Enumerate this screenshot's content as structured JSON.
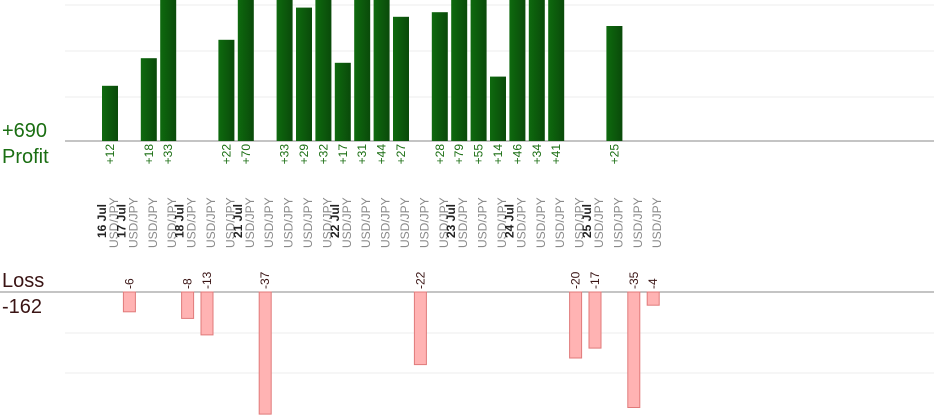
{
  "profit_label": "Profit",
  "loss_label": "Loss",
  "profit_total": "+690",
  "loss_total": "-162",
  "colors": {
    "profit_bar": "#0e6a0e",
    "profit_bar_dark": "#0a4a0a",
    "profit_text": "#1a6e12",
    "loss_bar": "#ffb3b3",
    "loss_bar_border": "#e07a7a",
    "loss_text": "#3a1414",
    "date_text": "#222222",
    "pair_text": "#8a8a8a",
    "grid": "#eeeeee",
    "axis": "#888888"
  },
  "chart_data": {
    "type": "bar",
    "title": "",
    "ylabel": "",
    "xlabel": "",
    "columns": [
      {
        "date": "16 Jul",
        "pair": "USD/JPY",
        "profit": 12
      },
      {
        "date": "17 Jul",
        "pair": "USD/JPY",
        "loss": -6
      },
      {
        "pair": "USD/JPY",
        "profit": 18
      },
      {
        "pair": "USD/JPY",
        "profit": 33
      },
      {
        "date": "18 Jul",
        "pair": "USD/JPY",
        "loss": -8
      },
      {
        "pair": "USD/JPY",
        "loss": -13
      },
      {
        "pair": "USD/JPY",
        "profit": 22
      },
      {
        "date": "21 Jul",
        "pair": "USD/JPY",
        "profit": 70
      },
      {
        "pair": "USD/JPY",
        "loss": -37
      },
      {
        "pair": "USD/JPY",
        "profit": 33
      },
      {
        "pair": "USD/JPY",
        "profit": 29
      },
      {
        "pair": "USD/JPY",
        "profit": 32
      },
      {
        "date": "22 Jul",
        "pair": "USD/JPY",
        "profit": 17
      },
      {
        "pair": "USD/JPY",
        "profit": 31
      },
      {
        "pair": "USD/JPY",
        "profit": 44
      },
      {
        "pair": "USD/JPY",
        "profit": 27
      },
      {
        "pair": "USD/JPY",
        "loss": -22
      },
      {
        "pair": "USD/JPY",
        "profit": 28
      },
      {
        "date": "23 Jul",
        "pair": "USD/JPY",
        "profit": 79
      },
      {
        "pair": "USD/JPY",
        "profit": 55
      },
      {
        "pair": "USD/JPY",
        "profit": 14
      },
      {
        "date": "24 Jul",
        "pair": "USD/JPY",
        "profit": 46
      },
      {
        "pair": "USD/JPY",
        "profit": 34
      },
      {
        "pair": "USD/JPY",
        "profit": 41
      },
      {
        "pair": "USD/JPY",
        "loss": -20
      },
      {
        "date": "25 Jul",
        "pair": "USD/JPY",
        "loss": -17
      },
      {
        "pair": "USD/JPY",
        "profit": 25
      },
      {
        "pair": "USD/JPY",
        "loss": -35
      },
      {
        "pair": "USD/JPY",
        "loss": -4
      }
    ],
    "profit_ylim": [
      0,
      32
    ],
    "loss_ylim": [
      -35,
      0
    ],
    "grid": true
  }
}
